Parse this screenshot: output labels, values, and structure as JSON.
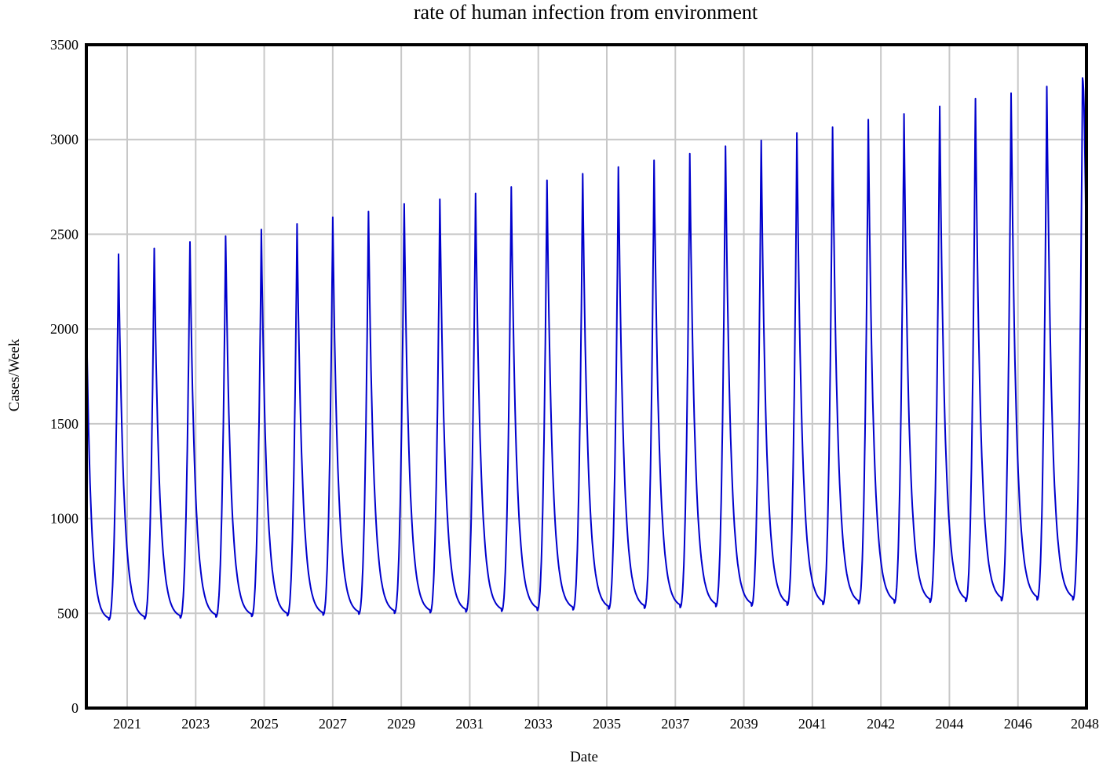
{
  "chart_data": {
    "type": "line",
    "title": "rate of human infection from environment",
    "xlabel": "Date",
    "ylabel": "Cases/Week",
    "ylim": [
      0,
      3500
    ],
    "yticks": [
      "0",
      "500",
      "1000",
      "1500",
      "2000",
      "2500",
      "3000",
      "3500"
    ],
    "xticks": [
      "2021",
      "2023",
      "2025",
      "2027",
      "2029",
      "2031",
      "2033",
      "2035",
      "2037",
      "2039",
      "2041",
      "2042",
      "2044",
      "2046",
      "2048"
    ],
    "grid": true,
    "line_color": "#0000cc",
    "series": [
      {
        "name": "",
        "start_value": 2130,
        "end_value": 2250,
        "peaks": [
          2395,
          2425,
          2460,
          2490,
          2525,
          2555,
          2590,
          2620,
          2660,
          2685,
          2715,
          2750,
          2785,
          2820,
          2855,
          2890,
          2925,
          2965,
          2995,
          3035,
          3065,
          3105,
          3135,
          3175,
          3215,
          3245,
          3280,
          3325
        ],
        "troughs": [
          465,
          470,
          475,
          480,
          483,
          487,
          490,
          495,
          500,
          503,
          507,
          510,
          515,
          518,
          522,
          526,
          530,
          535,
          538,
          542,
          546,
          550,
          554,
          558,
          562,
          566,
          570
        ]
      }
    ]
  }
}
